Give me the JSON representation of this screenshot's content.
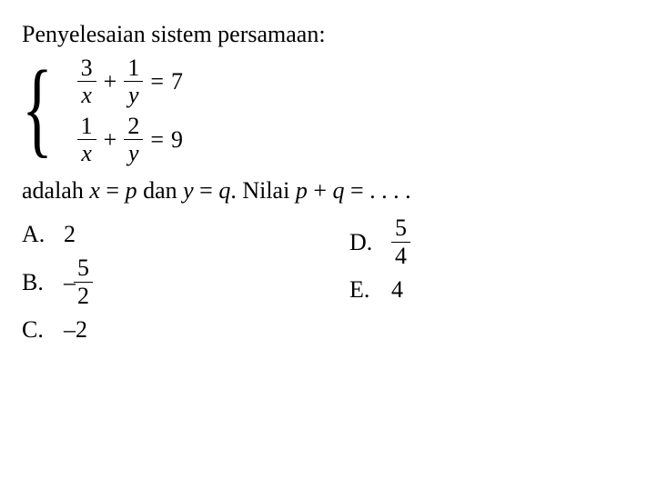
{
  "intro": "Penyelesaian sistem persamaan:",
  "system": {
    "eq1": {
      "f1n": "3",
      "f1d": "x",
      "op": "+",
      "f2n": "1",
      "f2d": "y",
      "eq": "=",
      "rhs": "7"
    },
    "eq2": {
      "f1n": "1",
      "f1d": "x",
      "op": "+",
      "f2n": "2",
      "f2d": "y",
      "eq": "=",
      "rhs": "9"
    }
  },
  "question": {
    "p1": "adalah ",
    "x": "x",
    "eqp": " = ",
    "p": "p",
    "p2": " dan ",
    "y": "y",
    "q": "q",
    "p3": ". Nilai ",
    "plus": " + ",
    "end": " = . . . ."
  },
  "answers": {
    "A": {
      "label": "A.",
      "value": "2"
    },
    "B": {
      "label": "B.",
      "neg": "–",
      "num": "5",
      "den": "2"
    },
    "C": {
      "label": "C.",
      "value": "–2"
    },
    "D": {
      "label": "D.",
      "num": "5",
      "den": "4"
    },
    "E": {
      "label": "E.",
      "value": "4"
    }
  },
  "colors": {
    "text": "#000000",
    "bg": "#ffffff"
  }
}
